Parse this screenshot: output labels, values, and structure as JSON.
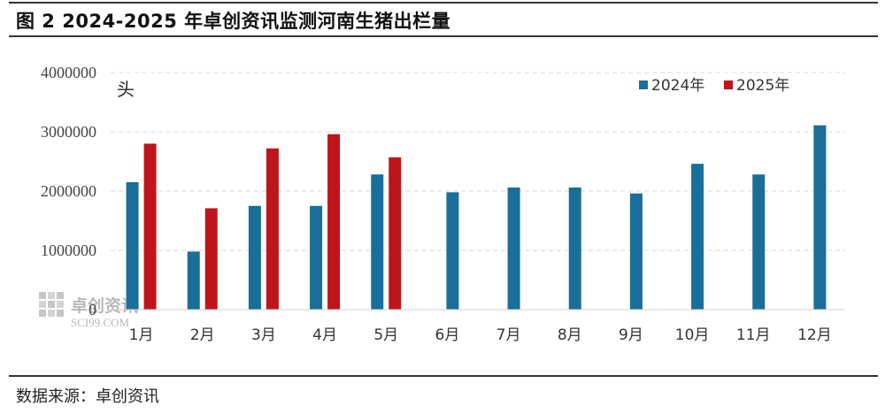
{
  "header": {
    "title": "图 2 2024-2025 年卓创资讯监测河南生猪出栏量"
  },
  "footer": {
    "source": "数据来源：卓创资讯"
  },
  "watermark": {
    "brand": "卓创资讯",
    "site": "SCI99.COM"
  },
  "colors": {
    "series_2024": "#1a6e9a",
    "series_2025": "#c0141b",
    "grid": "#d9d9d9",
    "rule": "#333333"
  },
  "chart_data": {
    "type": "bar",
    "title": "图 2 2024-2025 年卓创资讯监测河南生猪出栏量",
    "unit_label": "头",
    "categories": [
      "1月",
      "2月",
      "3月",
      "4月",
      "5月",
      "6月",
      "7月",
      "8月",
      "9月",
      "10月",
      "11月",
      "12月"
    ],
    "series": [
      {
        "name": "2024年",
        "values": [
          2150000,
          980000,
          1750000,
          1750000,
          2280000,
          1980000,
          2060000,
          2060000,
          1960000,
          2460000,
          2280000,
          3110000
        ]
      },
      {
        "name": "2025年",
        "values": [
          2800000,
          1710000,
          2720000,
          2960000,
          2570000,
          null,
          null,
          null,
          null,
          null,
          null,
          null
        ]
      }
    ],
    "ylim": [
      0,
      4000000
    ],
    "yticks": [
      "0",
      "1000000",
      "2000000",
      "3000000",
      "4000000"
    ],
    "grid": true,
    "legend_position": "top-right"
  }
}
